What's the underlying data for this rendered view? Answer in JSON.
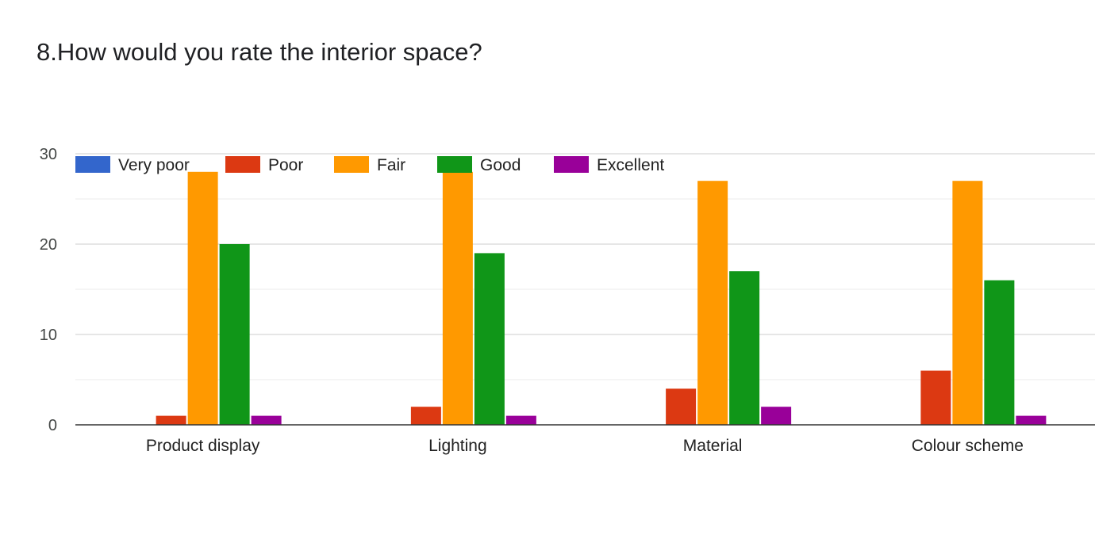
{
  "question": {
    "title": "8.How would you rate the interior space?"
  },
  "chart_data": {
    "type": "bar",
    "categories": [
      "Product display",
      "Lighting",
      "Material",
      "Colour scheme"
    ],
    "series": [
      {
        "name": "Very poor",
        "color": "#3366cc",
        "values": [
          0,
          0,
          0,
          0
        ]
      },
      {
        "name": "Poor",
        "color": "#dc3912",
        "values": [
          1,
          2,
          4,
          6
        ]
      },
      {
        "name": "Fair",
        "color": "#ff9900",
        "values": [
          28,
          28,
          27,
          27
        ]
      },
      {
        "name": "Good",
        "color": "#109618",
        "values": [
          20,
          19,
          17,
          16
        ]
      },
      {
        "name": "Excellent",
        "color": "#990099",
        "values": [
          1,
          1,
          2,
          1
        ]
      }
    ],
    "y_ticks": [
      "0",
      "10",
      "20",
      "30"
    ],
    "ylim": [
      0,
      30
    ],
    "grid": true,
    "legend_position": "top-left"
  }
}
